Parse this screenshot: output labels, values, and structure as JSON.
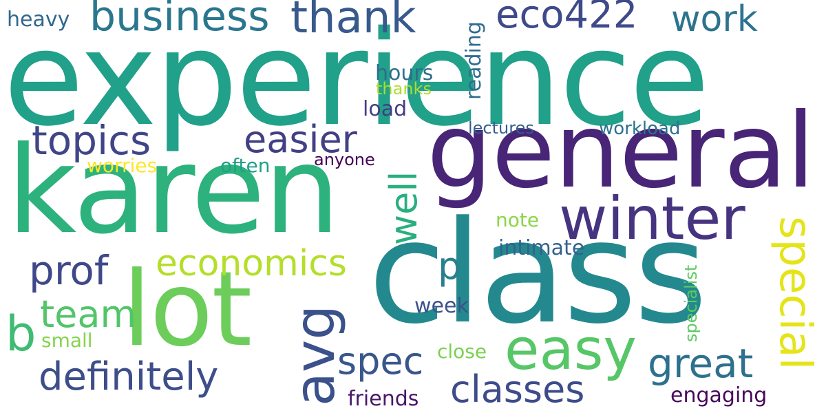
{
  "words": [
    {
      "text": "experience",
      "color": "#21a08a"
    },
    {
      "text": "general",
      "color": "#482576"
    },
    {
      "text": "karen",
      "color": "#2db27d"
    },
    {
      "text": "class",
      "color": "#23898e"
    },
    {
      "text": "lot",
      "color": "#6ccd5a"
    },
    {
      "text": "winter",
      "color": "#463480"
    },
    {
      "text": "easy",
      "color": "#56c667"
    },
    {
      "text": "special",
      "color": "#e5e419"
    },
    {
      "text": "business",
      "color": "#2a768e"
    },
    {
      "text": "thank",
      "color": "#38598c"
    },
    {
      "text": "eco422",
      "color": "#3e4a89"
    },
    {
      "text": "work",
      "color": "#2c738e"
    },
    {
      "text": "topics",
      "color": "#404588"
    },
    {
      "text": "easier",
      "color": "#423f85"
    },
    {
      "text": "well",
      "color": "#29af7f"
    },
    {
      "text": "economics",
      "color": "#b5de2b"
    },
    {
      "text": "prof",
      "color": "#3f4889"
    },
    {
      "text": "p",
      "color": "#27808e"
    },
    {
      "text": "avg",
      "color": "#3b518b"
    },
    {
      "text": "team",
      "color": "#52c569"
    },
    {
      "text": "b",
      "color": "#3fbc73"
    },
    {
      "text": "definitely",
      "color": "#3d4e8a"
    },
    {
      "text": "spec",
      "color": "#39568c"
    },
    {
      "text": "great",
      "color": "#2d718e"
    },
    {
      "text": "classes",
      "color": "#3e4c8a"
    },
    {
      "text": "hours",
      "color": "#2e6e8e"
    },
    {
      "text": "thanks",
      "color": "#addc30"
    },
    {
      "text": "load",
      "color": "#433d84"
    },
    {
      "text": "reading",
      "color": "#2f6c8e"
    },
    {
      "text": "heavy",
      "color": "#31688e"
    },
    {
      "text": "lectures",
      "color": "#365d8d"
    },
    {
      "text": "workload",
      "color": "#2c728e"
    },
    {
      "text": "worries",
      "color": "#fde725"
    },
    {
      "text": "often",
      "color": "#1fa088"
    },
    {
      "text": "anyone",
      "color": "#440154"
    },
    {
      "text": "note",
      "color": "#8bd646"
    },
    {
      "text": "intimate",
      "color": "#34618d"
    },
    {
      "text": "week",
      "color": "#3b528b"
    },
    {
      "text": "small",
      "color": "#84d44b"
    },
    {
      "text": "close",
      "color": "#7ad151"
    },
    {
      "text": "specialist",
      "color": "#5ec962"
    },
    {
      "text": "friends",
      "color": "#481769"
    },
    {
      "text": "engaging",
      "color": "#46085c"
    }
  ]
}
